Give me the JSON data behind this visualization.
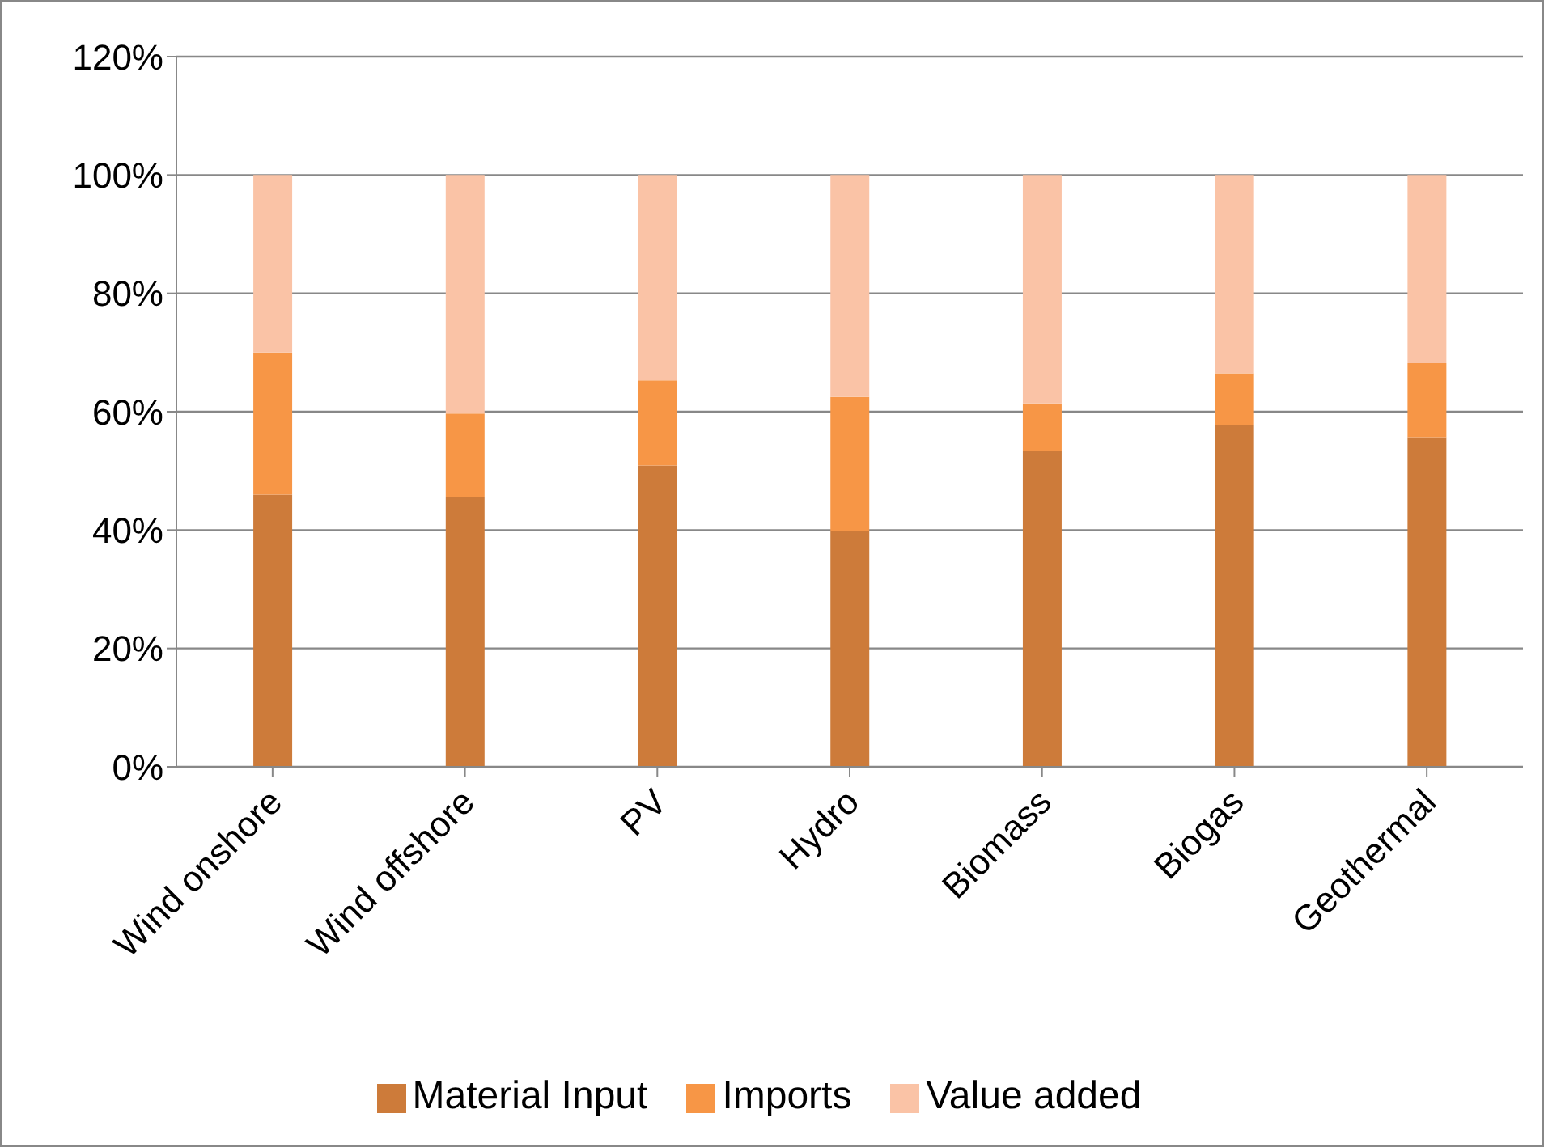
{
  "chart_data": {
    "type": "bar",
    "stacked": true,
    "categories": [
      "Wind onshore",
      "Wind offshore",
      "PV",
      "Hydro",
      "Biomass",
      "Biogas",
      "Geothermal"
    ],
    "series": [
      {
        "name": "Material Input",
        "color": "#cd7b3a",
        "values": [
          46,
          45.5,
          50.9,
          39.8,
          53.4,
          57.7,
          55.7
        ]
      },
      {
        "name": "Imports",
        "color": "#f79646",
        "values": [
          24,
          14.2,
          14.4,
          22.7,
          8,
          8.8,
          12.5
        ]
      },
      {
        "name": "Value added",
        "color": "#fac3a6",
        "values": [
          30,
          40.3,
          34.7,
          37.5,
          38.6,
          33.5,
          31.8
        ]
      }
    ],
    "ylim": [
      0,
      120
    ],
    "yticks": [
      {
        "value": 0,
        "label": "0%"
      },
      {
        "value": 20,
        "label": "20%"
      },
      {
        "value": 40,
        "label": "40%"
      },
      {
        "value": 60,
        "label": "60%"
      },
      {
        "value": 80,
        "label": "80%"
      },
      {
        "value": 100,
        "label": "100%"
      },
      {
        "value": 120,
        "label": "120%"
      }
    ],
    "grid": "y",
    "legend": "bottom"
  }
}
